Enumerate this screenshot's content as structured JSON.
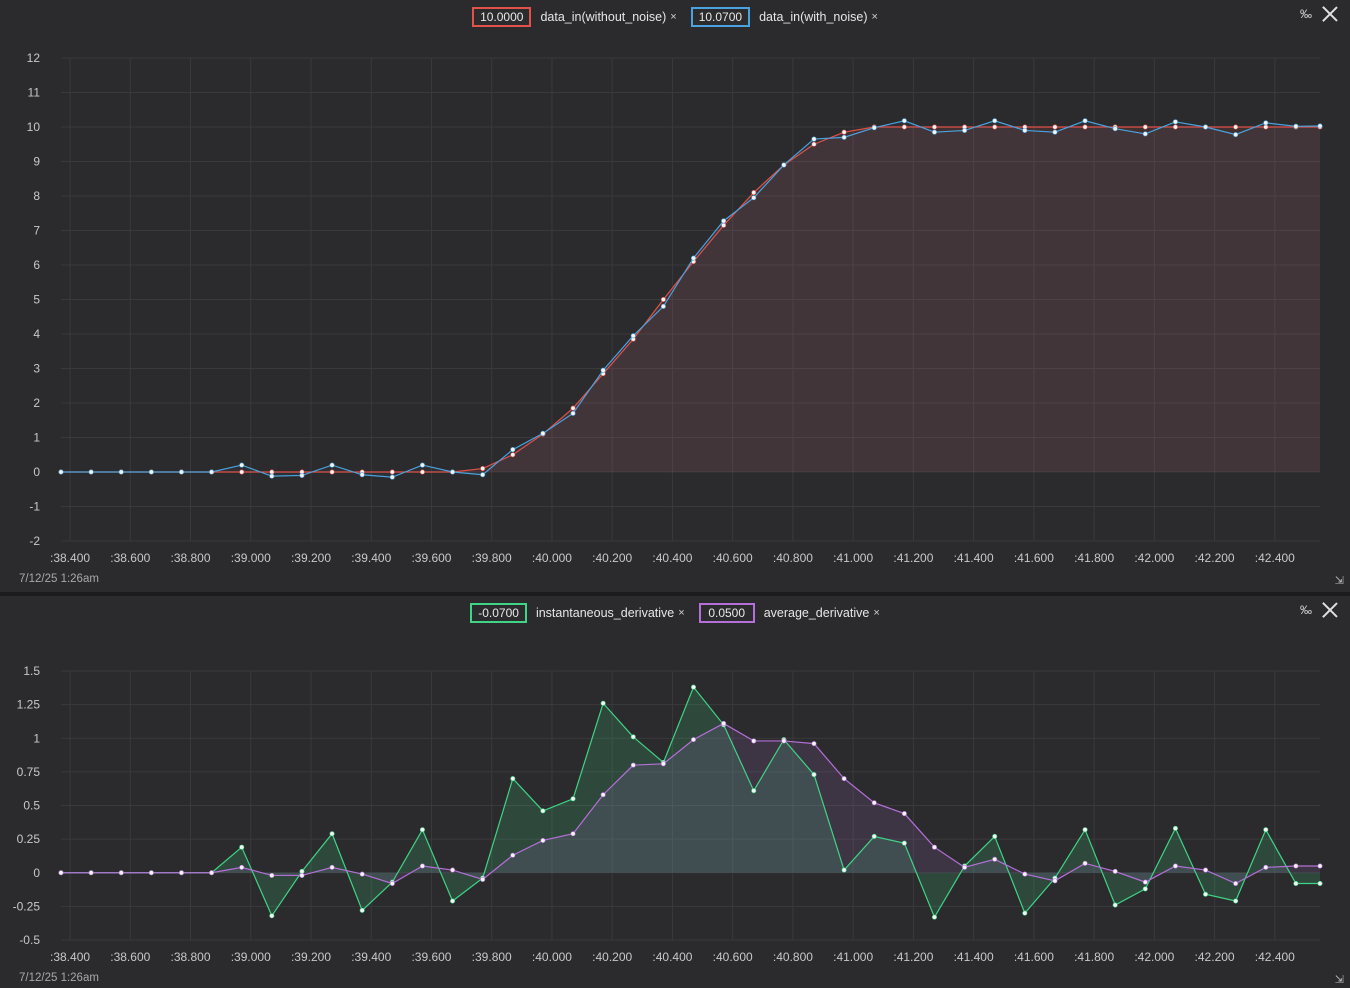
{
  "charts": {
    "top": {
      "legend": [
        {
          "value": "10.0000",
          "label": "data_in(without_noise)",
          "color": "#e0524a",
          "remove": "×"
        },
        {
          "value": "10.0700",
          "label": "data_in(with_noise)",
          "color": "#4aa3e0",
          "remove": "×"
        }
      ],
      "permille": "‰",
      "timestamp": "7/12/25 1:26am"
    },
    "bottom": {
      "legend": [
        {
          "value": "-0.0700",
          "label": "instantaneous_derivative",
          "color": "#3fd486",
          "remove": "×"
        },
        {
          "value": "0.0500",
          "label": "average_derivative",
          "color": "#b470d8",
          "remove": "×"
        }
      ],
      "permille": "‰",
      "timestamp": "7/12/25 1:26am"
    }
  },
  "chart_data": [
    {
      "type": "line",
      "title": "",
      "xlabel": "",
      "ylabel": "",
      "x_tick_labels": [
        ":38.400",
        ":38.600",
        ":38.800",
        ":39.000",
        ":39.200",
        ":39.400",
        ":39.600",
        ":39.800",
        ":40.000",
        ":40.200",
        ":40.400",
        ":40.600",
        ":40.800",
        ":41.000",
        ":41.200",
        ":41.400",
        ":41.600",
        ":41.800",
        ":42.000",
        ":42.200",
        ":42.400"
      ],
      "x_ticks": [
        38.4,
        38.6,
        38.8,
        39.0,
        39.2,
        39.4,
        39.6,
        39.8,
        40.0,
        40.2,
        40.4,
        40.6,
        40.8,
        41.0,
        41.2,
        41.4,
        41.6,
        41.8,
        42.0,
        42.2,
        42.4
      ],
      "xlim": [
        38.37,
        42.55
      ],
      "ylim": [
        -2,
        12
      ],
      "y_ticks": [
        -2,
        -1,
        0,
        1,
        2,
        3,
        4,
        5,
        6,
        7,
        8,
        9,
        10,
        11,
        12
      ],
      "grid": true,
      "x": [
        38.37,
        38.47,
        38.57,
        38.67,
        38.77,
        38.87,
        38.97,
        39.07,
        39.17,
        39.27,
        39.37,
        39.47,
        39.57,
        39.67,
        39.77,
        39.87,
        39.97,
        40.07,
        40.17,
        40.27,
        40.37,
        40.47,
        40.57,
        40.67,
        40.77,
        40.87,
        40.97,
        41.07,
        41.17,
        41.27,
        41.37,
        41.47,
        41.57,
        41.67,
        41.77,
        41.87,
        41.97,
        42.07,
        42.17,
        42.27,
        42.37,
        42.47,
        42.55
      ],
      "series": [
        {
          "name": "data_in(without_noise)",
          "color": "#e0524a",
          "values": [
            0,
            0,
            0,
            0,
            0,
            0,
            0,
            0,
            0,
            0,
            0,
            0,
            0,
            0,
            0.1,
            0.5,
            1.1,
            1.85,
            2.85,
            3.85,
            5.0,
            6.1,
            7.15,
            8.1,
            8.9,
            9.5,
            9.85,
            10,
            10,
            10,
            10,
            10,
            10,
            10,
            10,
            10,
            10,
            10,
            10,
            10,
            10,
            10,
            10
          ]
        },
        {
          "name": "data_in(with_noise)",
          "color": "#4aa3e0",
          "values": [
            0,
            0,
            0,
            0,
            0,
            0,
            0.2,
            -0.12,
            -0.1,
            0.2,
            -0.08,
            -0.15,
            0.2,
            0,
            -0.08,
            0.65,
            1.12,
            1.7,
            2.95,
            3.95,
            4.8,
            6.2,
            7.28,
            7.95,
            8.9,
            9.65,
            9.7,
            9.98,
            10.18,
            9.85,
            9.9,
            10.18,
            9.9,
            9.85,
            10.18,
            9.95,
            9.8,
            10.15,
            10.0,
            9.78,
            10.12,
            10.02,
            10.03
          ]
        }
      ]
    },
    {
      "type": "line",
      "title": "",
      "xlabel": "",
      "ylabel": "",
      "x_tick_labels": [
        ":38.400",
        ":38.600",
        ":38.800",
        ":39.000",
        ":39.200",
        ":39.400",
        ":39.600",
        ":39.800",
        ":40.000",
        ":40.200",
        ":40.400",
        ":40.600",
        ":40.800",
        ":41.000",
        ":41.200",
        ":41.400",
        ":41.600",
        ":41.800",
        ":42.000",
        ":42.200",
        ":42.400"
      ],
      "x_ticks": [
        38.4,
        38.6,
        38.8,
        39.0,
        39.2,
        39.4,
        39.6,
        39.8,
        40.0,
        40.2,
        40.4,
        40.6,
        40.8,
        41.0,
        41.2,
        41.4,
        41.6,
        41.8,
        42.0,
        42.2,
        42.4
      ],
      "xlim": [
        38.37,
        42.55
      ],
      "ylim": [
        -0.5,
        1.5
      ],
      "y_ticks": [
        -0.5,
        -0.25,
        0,
        0.25,
        0.5,
        0.75,
        1,
        1.25,
        1.5
      ],
      "y_tick_labels": [
        "-0.5",
        "-0.25",
        "0",
        "0.25",
        "0.5",
        "0.75",
        "1",
        "1.25",
        "1.5"
      ],
      "grid": true,
      "x": [
        38.37,
        38.47,
        38.57,
        38.67,
        38.77,
        38.87,
        38.97,
        39.07,
        39.17,
        39.27,
        39.37,
        39.47,
        39.57,
        39.67,
        39.77,
        39.87,
        39.97,
        40.07,
        40.17,
        40.27,
        40.37,
        40.47,
        40.57,
        40.67,
        40.77,
        40.87,
        40.97,
        41.07,
        41.17,
        41.27,
        41.37,
        41.47,
        41.57,
        41.67,
        41.77,
        41.87,
        41.97,
        42.07,
        42.17,
        42.27,
        42.37,
        42.47,
        42.55
      ],
      "series": [
        {
          "name": "instantaneous_derivative",
          "color": "#3fd486",
          "values": [
            0,
            0,
            0,
            0,
            0,
            0,
            0.19,
            -0.32,
            0.01,
            0.29,
            -0.28,
            -0.07,
            0.32,
            -0.21,
            -0.04,
            0.7,
            0.46,
            0.55,
            1.26,
            1.01,
            0.82,
            1.38,
            1.1,
            0.61,
            0.99,
            0.73,
            0.02,
            0.27,
            0.22,
            -0.33,
            0.05,
            0.27,
            -0.3,
            -0.04,
            0.32,
            -0.24,
            -0.12,
            0.33,
            -0.16,
            -0.21,
            0.32,
            -0.08,
            -0.08
          ]
        },
        {
          "name": "average_derivative",
          "color": "#b470d8",
          "values": [
            0,
            0,
            0,
            0,
            0,
            0,
            0.04,
            -0.02,
            -0.02,
            0.04,
            -0.01,
            -0.08,
            0.05,
            0.02,
            -0.05,
            0.13,
            0.24,
            0.29,
            0.58,
            0.8,
            0.81,
            0.99,
            1.11,
            0.98,
            0.98,
            0.96,
            0.7,
            0.52,
            0.44,
            0.19,
            0.04,
            0.1,
            -0.01,
            -0.06,
            0.07,
            0.01,
            -0.07,
            0.05,
            0.02,
            -0.08,
            0.04,
            0.05,
            0.05
          ]
        }
      ]
    }
  ]
}
